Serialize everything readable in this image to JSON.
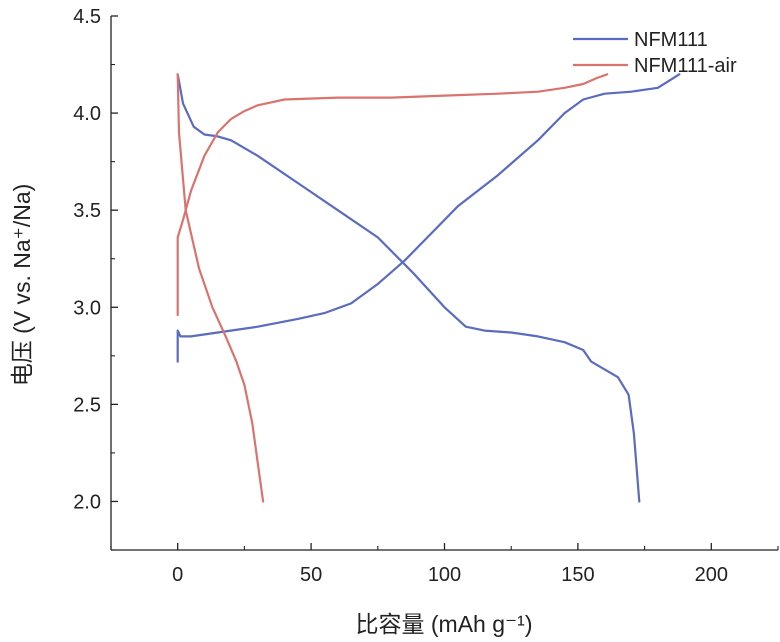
{
  "chart_data": {
    "type": "line",
    "title": "",
    "xlabel": "比容量 (mAh g⁻¹)",
    "ylabel": "电压 (V vs. Na⁺/Na)",
    "xlim": [
      -25,
      225
    ],
    "ylim": [
      1.75,
      4.5
    ],
    "x_ticks": [
      0,
      50,
      100,
      150,
      200
    ],
    "x_tick_labels": [
      "0",
      "50",
      "100",
      "150",
      "200"
    ],
    "y_ticks": [
      2.0,
      2.5,
      3.0,
      3.5,
      4.0,
      4.5
    ],
    "y_tick_labels": [
      "2.0",
      "2.5",
      "3.0",
      "3.5",
      "4.0",
      "4.5"
    ],
    "legend_position": "top-right",
    "series": [
      {
        "name": "NFM111",
        "color": "#5a6bc0",
        "segments": [
          [
            [
              0,
              2.72
            ],
            [
              0,
              2.88
            ],
            [
              1,
              2.85
            ],
            [
              5,
              2.85
            ],
            [
              15,
              2.87
            ],
            [
              30,
              2.9
            ],
            [
              45,
              2.94
            ],
            [
              55,
              2.97
            ],
            [
              65,
              3.02
            ],
            [
              75,
              3.12
            ],
            [
              85,
              3.24
            ],
            [
              95,
              3.38
            ],
            [
              105,
              3.52
            ],
            [
              120,
              3.68
            ],
            [
              135,
              3.86
            ],
            [
              145,
              4.0
            ],
            [
              152,
              4.07
            ],
            [
              160,
              4.1
            ],
            [
              170,
              4.11
            ],
            [
              180,
              4.13
            ],
            [
              188,
              4.2
            ]
          ],
          [
            [
              0,
              4.2
            ],
            [
              2,
              4.05
            ],
            [
              6,
              3.93
            ],
            [
              10,
              3.89
            ],
            [
              15,
              3.88
            ],
            [
              20,
              3.86
            ],
            [
              30,
              3.78
            ],
            [
              45,
              3.64
            ],
            [
              60,
              3.5
            ],
            [
              75,
              3.36
            ],
            [
              88,
              3.18
            ],
            [
              100,
              3.0
            ],
            [
              108,
              2.9
            ],
            [
              115,
              2.88
            ],
            [
              125,
              2.87
            ],
            [
              135,
              2.85
            ],
            [
              145,
              2.82
            ],
            [
              152,
              2.78
            ],
            [
              155,
              2.72
            ],
            [
              160,
              2.68
            ],
            [
              165,
              2.64
            ],
            [
              169,
              2.55
            ],
            [
              171,
              2.35
            ],
            [
              173,
              2.0
            ]
          ]
        ]
      },
      {
        "name": "NFM111-air",
        "color": "#d9736f",
        "segments": [
          [
            [
              0,
              2.96
            ],
            [
              0,
              3.36
            ],
            [
              2,
              3.45
            ],
            [
              5,
              3.6
            ],
            [
              10,
              3.78
            ],
            [
              15,
              3.9
            ],
            [
              20,
              3.97
            ],
            [
              25,
              4.01
            ],
            [
              30,
              4.04
            ],
            [
              40,
              4.07
            ],
            [
              60,
              4.08
            ],
            [
              80,
              4.08
            ],
            [
              100,
              4.09
            ],
            [
              120,
              4.1
            ],
            [
              135,
              4.11
            ],
            [
              145,
              4.13
            ],
            [
              152,
              4.15
            ],
            [
              157,
              4.18
            ],
            [
              161,
              4.2
            ]
          ],
          [
            [
              0,
              4.2
            ],
            [
              0.5,
              3.9
            ],
            [
              3,
              3.5
            ],
            [
              8,
              3.2
            ],
            [
              13,
              3.0
            ],
            [
              18,
              2.85
            ],
            [
              22,
              2.72
            ],
            [
              25,
              2.6
            ],
            [
              28,
              2.4
            ],
            [
              30,
              2.2
            ],
            [
              32,
              2.0
            ]
          ]
        ]
      }
    ]
  }
}
